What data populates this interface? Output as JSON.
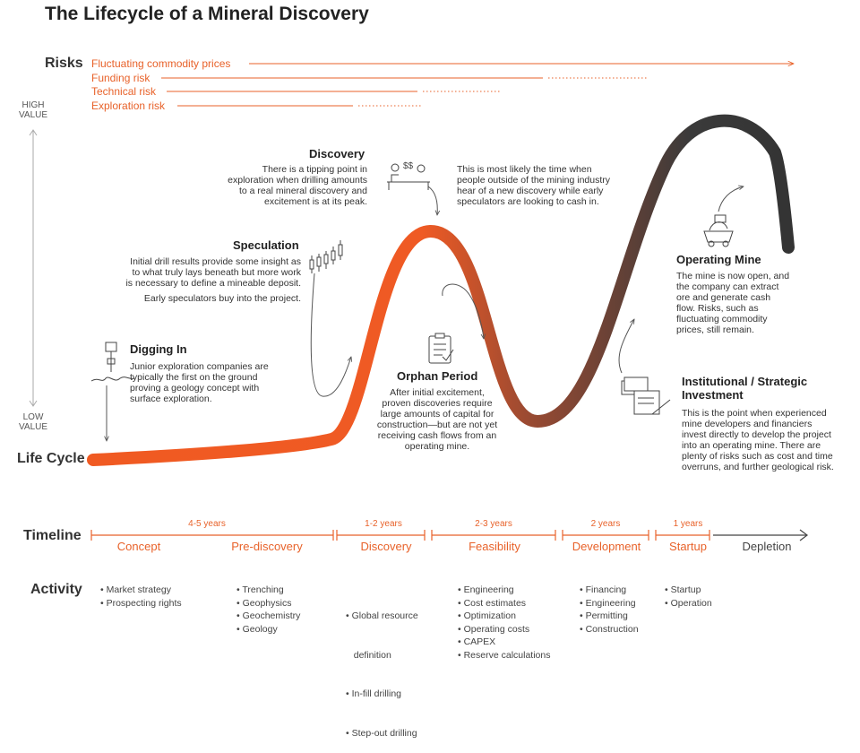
{
  "title": "The Lifecycle of a Mineral Discovery",
  "axis": {
    "risks": "Risks",
    "high_value": [
      "HIGH",
      "VALUE"
    ],
    "low_value": [
      "LOW",
      "VALUE"
    ],
    "life_cycle": "Life Cycle"
  },
  "risks": [
    "Fluctuating commodity prices",
    "Funding risk",
    "Technical risk",
    "Exploration risk"
  ],
  "stages": {
    "discovery": {
      "title": "Discovery",
      "text": [
        "There is a tipping point in",
        "exploration when drilling amounts",
        "to a real mineral discovery and",
        "excitement is at its peak."
      ],
      "aside": [
        "This is most likely the time when",
        "people outside of the mining industry",
        "hear of a new discovery while early",
        "speculators are looking to cash in."
      ]
    },
    "speculation": {
      "title": "Speculation",
      "text": [
        "Initial drill results provide some insight as",
        "to what truly lays beneath but more work",
        "is necessary to define a mineable deposit."
      ],
      "text2": "Early speculators buy into the project."
    },
    "digging_in": {
      "title": "Digging In",
      "text": [
        "Junior exploration companies are",
        "typically the first on the ground",
        "proving a geology concept with",
        "surface exploration."
      ]
    },
    "orphan": {
      "title": "Orphan Period",
      "text": [
        "After initial excitement,",
        "proven discoveries require",
        "large amounts of capital for",
        "construction—but are not yet",
        "receiving cash flows from an",
        "operating mine."
      ]
    },
    "operating": {
      "title": "Operating Mine",
      "text": [
        "The mine is now open, and",
        "the company can extract",
        "ore and generate cash",
        "flow. Risks, such as",
        "fluctuating commodity",
        "prices, still remain."
      ]
    },
    "institutional": {
      "title": [
        "Institutional / Strategic",
        "Investment"
      ],
      "text": [
        "This is the point when experienced",
        "mine developers and financiers",
        "invest directly to develop the project",
        "into an operating mine. There are",
        "plenty of risks such as cost and time",
        "overruns, and further geological risk."
      ]
    }
  },
  "timeline": {
    "label": "Timeline",
    "durations": [
      "4-5 years",
      "1-2 years",
      "2-3 years",
      "2 years",
      "1 years"
    ],
    "phases": [
      "Concept",
      "Pre-discovery",
      "Discovery",
      "Feasibility",
      "Development",
      "Startup",
      "Depletion"
    ]
  },
  "activity": {
    "label": "Activity",
    "columns": [
      [
        "• Market strategy",
        "• Prospecting rights"
      ],
      [
        "• Trenching",
        "• Geophysics",
        "• Geochemistry",
        "• Geology"
      ],
      [
        "• Global resource",
        "   definition",
        "• In-fill drilling",
        "• Step-out drilling"
      ],
      [
        "• Engineering",
        "• Cost estimates",
        "• Optimization",
        "• Operating costs",
        "• CAPEX",
        "• Reserve calculations"
      ],
      [
        "• Financing",
        "• Engineering",
        "• Permitting",
        "• Construction"
      ],
      [
        "• Startup",
        "• Operation"
      ]
    ]
  },
  "colors": {
    "accent": "#e8622a",
    "dark": "#333333",
    "mid": "#7a3a2a"
  }
}
